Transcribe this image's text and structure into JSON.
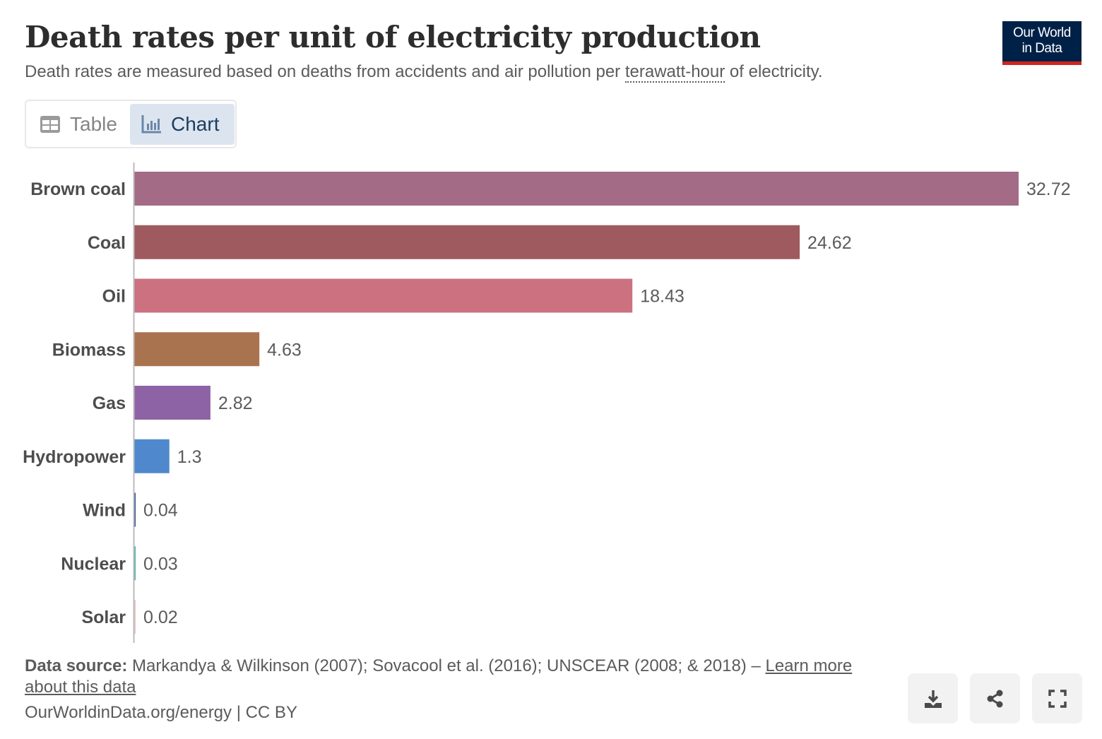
{
  "header": {
    "title": "Death rates per unit of electricity production",
    "subtitle_before": "Death rates are measured based on deaths from accidents and air pollution per ",
    "subtitle_term": "terawatt-hour",
    "subtitle_after": " of electricity.",
    "logo_text": "Our World in Data"
  },
  "tabs": [
    {
      "label": "Table",
      "icon": "table-icon",
      "active": false
    },
    {
      "label": "Chart",
      "icon": "bar-chart-icon",
      "active": true
    }
  ],
  "chart_data": {
    "type": "bar",
    "orientation": "horizontal",
    "title": "Death rates per unit of electricity production",
    "categories": [
      "Brown coal",
      "Coal",
      "Oil",
      "Biomass",
      "Gas",
      "Hydropower",
      "Wind",
      "Nuclear",
      "Solar"
    ],
    "values": [
      32.72,
      24.62,
      18.43,
      4.63,
      2.82,
      1.3,
      0.04,
      0.03,
      0.02
    ],
    "value_labels": [
      "32.72",
      "24.62",
      "18.43",
      "4.63",
      "2.82",
      "1.3",
      "0.04",
      "0.03",
      "0.02"
    ],
    "colors": [
      "#a36b85",
      "#9e5a5f",
      "#cc7180",
      "#aa7350",
      "#8e63a6",
      "#4f88cc",
      "#3b5a8f",
      "#4cb4b3",
      "#f0c4c4"
    ],
    "xlim": [
      0,
      32.72
    ],
    "grid": false,
    "legend": "none"
  },
  "footer": {
    "source_label": "Data source:",
    "source_text": " Markandya & Wilkinson (2007); Sovacool et al. (2016); UNSCEAR (2008; & 2018) – ",
    "learn_more": "Learn more about this data",
    "url": "OurWorldinData.org/energy | CC BY"
  },
  "actions": {
    "download": "download-icon",
    "share": "share-icon",
    "fullscreen": "fullscreen-icon"
  }
}
